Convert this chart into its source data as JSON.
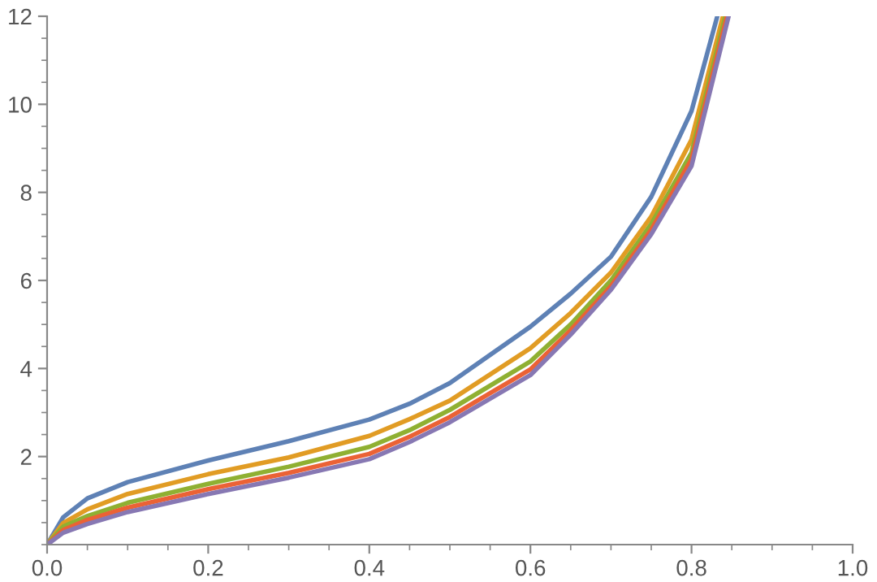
{
  "chart_data": {
    "type": "line",
    "xlim": [
      0,
      1.0
    ],
    "ylim": [
      0,
      12
    ],
    "xticks": [
      {
        "value": 0,
        "label": "0.0"
      },
      {
        "value": 0.2,
        "label": "0.2"
      },
      {
        "value": 0.4,
        "label": "0.4"
      },
      {
        "value": 0.6,
        "label": "0.6"
      },
      {
        "value": 0.8,
        "label": "0.8"
      },
      {
        "value": 1.0,
        "label": "1.0"
      }
    ],
    "yticks": [
      2,
      4,
      6,
      8,
      10,
      12
    ],
    "grid": false,
    "marker": "none",
    "line_style": "solid",
    "series": [
      {
        "color": "#5e81b5",
        "x": [
          0,
          0.02,
          0.05,
          0.1,
          0.2,
          0.3,
          0.4,
          0.45,
          0.5,
          0.6,
          0.65,
          0.7,
          0.75,
          0.8,
          0.832
        ],
        "values": [
          0,
          0.62,
          1.05,
          1.42,
          1.91,
          2.35,
          2.84,
          3.2,
          3.67,
          4.95,
          5.7,
          6.54,
          7.9,
          9.85,
          12
        ]
      },
      {
        "color": "#e19c24",
        "x": [
          0,
          0.02,
          0.05,
          0.1,
          0.2,
          0.3,
          0.4,
          0.45,
          0.5,
          0.6,
          0.65,
          0.7,
          0.75,
          0.8,
          0.839
        ],
        "values": [
          0,
          0.49,
          0.8,
          1.15,
          1.6,
          1.98,
          2.47,
          2.85,
          3.27,
          4.46,
          5.26,
          6.18,
          7.45,
          9.2,
          12
        ]
      },
      {
        "color": "#8fb032",
        "x": [
          0,
          0.02,
          0.05,
          0.1,
          0.2,
          0.3,
          0.4,
          0.45,
          0.5,
          0.6,
          0.65,
          0.7,
          0.75,
          0.8,
          0.842
        ],
        "values": [
          0,
          0.41,
          0.65,
          0.95,
          1.38,
          1.77,
          2.22,
          2.6,
          3.06,
          4.16,
          5.0,
          6.0,
          7.28,
          8.9,
          12
        ]
      },
      {
        "color": "#eb6235",
        "x": [
          0,
          0.02,
          0.05,
          0.1,
          0.2,
          0.3,
          0.4,
          0.45,
          0.5,
          0.6,
          0.65,
          0.7,
          0.75,
          0.8,
          0.844
        ],
        "values": [
          0,
          0.33,
          0.56,
          0.84,
          1.26,
          1.63,
          2.06,
          2.45,
          2.9,
          3.98,
          4.87,
          5.87,
          7.15,
          8.75,
          12
        ]
      },
      {
        "color": "#8778b3",
        "x": [
          0,
          0.02,
          0.05,
          0.1,
          0.2,
          0.3,
          0.4,
          0.45,
          0.5,
          0.6,
          0.65,
          0.7,
          0.75,
          0.8,
          0.846
        ],
        "values": [
          0,
          0.27,
          0.47,
          0.74,
          1.15,
          1.52,
          1.94,
          2.33,
          2.78,
          3.85,
          4.77,
          5.79,
          7.05,
          8.6,
          12
        ]
      }
    ]
  }
}
